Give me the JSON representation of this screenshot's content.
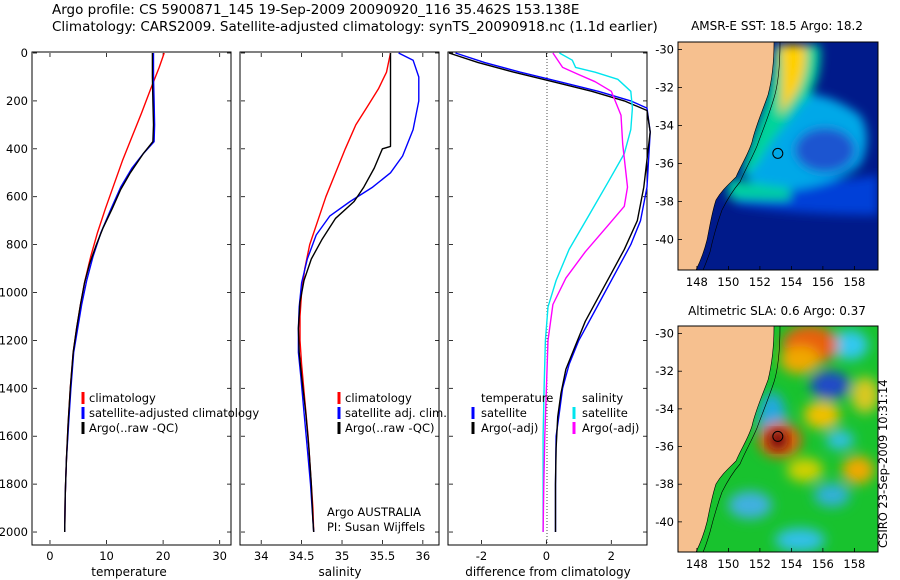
{
  "header": {
    "line1": "Argo profile: CS 5900871_145 19-Sep-2009 20090920_116 35.462S 153.138E",
    "line2": "Climatology: CARS2009. Satellite-adjusted climatology: synTS_20090918.nc (1.1d earlier)"
  },
  "credit": "CSIRO 23-Sep-2009 10:31:14",
  "colors": {
    "red": "#ff0000",
    "blue": "#0000ff",
    "black": "#000000",
    "cyan": "#00e5ee",
    "magenta": "#ff00ff",
    "land": "#f6c08f",
    "deep": "#001a8a"
  },
  "chart_data": [
    {
      "type": "line",
      "xlabel": "temperature",
      "ylabel": "",
      "xlim": [
        -3,
        32
      ],
      "ylim": [
        2050,
        0
      ],
      "xticks": [
        0,
        10,
        20,
        30
      ],
      "yticks": [
        0,
        200,
        400,
        600,
        800,
        1000,
        1200,
        1400,
        1600,
        1800,
        2000
      ],
      "legend": [
        "climatology",
        "satellite-adjusted climatology",
        "Argo(..raw -QC)"
      ],
      "series": [
        {
          "name": "climatology",
          "color": "red",
          "points": [
            [
              20.2,
              0
            ],
            [
              19.3,
              60
            ],
            [
              17.8,
              150
            ],
            [
              16.2,
              250
            ],
            [
              14.5,
              350
            ],
            [
              12.8,
              450
            ],
            [
              11.3,
              550
            ],
            [
              9.8,
              650
            ],
            [
              8.4,
              750
            ],
            [
              7.2,
              850
            ],
            [
              6.2,
              950
            ],
            [
              5.4,
              1050
            ],
            [
              4.7,
              1150
            ],
            [
              4.1,
              1250
            ],
            [
              3.6,
              1400
            ],
            [
              3.2,
              1550
            ],
            [
              2.9,
              1700
            ],
            [
              2.7,
              1850
            ],
            [
              2.6,
              2000
            ]
          ]
        },
        {
          "name": "satellite-adjusted climatology",
          "color": "blue",
          "points": [
            [
              18.3,
              0
            ],
            [
              18.3,
              100
            ],
            [
              18.4,
              200
            ],
            [
              18.5,
              300
            ],
            [
              18.4,
              370
            ],
            [
              16.5,
              420
            ],
            [
              14.5,
              480
            ],
            [
              12.5,
              560
            ],
            [
              10.8,
              650
            ],
            [
              9.0,
              750
            ],
            [
              7.6,
              850
            ],
            [
              6.5,
              950
            ],
            [
              5.6,
              1050
            ],
            [
              4.9,
              1150
            ],
            [
              4.2,
              1250
            ],
            [
              3.7,
              1400
            ],
            [
              3.3,
              1550
            ],
            [
              2.9,
              1700
            ],
            [
              2.7,
              1850
            ],
            [
              2.6,
              2000
            ]
          ]
        },
        {
          "name": "Argo(..raw -QC)",
          "color": "black",
          "points": [
            [
              18.1,
              0
            ],
            [
              18.1,
              100
            ],
            [
              18.2,
              200
            ],
            [
              18.3,
              300
            ],
            [
              18.2,
              370
            ],
            [
              16.5,
              420
            ],
            [
              14.2,
              500
            ],
            [
              12.5,
              570
            ],
            [
              11.0,
              650
            ],
            [
              9.4,
              730
            ],
            [
              8.2,
              800
            ],
            [
              7.0,
              880
            ],
            [
              6.1,
              960
            ],
            [
              5.4,
              1050
            ],
            [
              4.7,
              1150
            ],
            [
              4.1,
              1250
            ],
            [
              3.6,
              1400
            ],
            [
              3.2,
              1550
            ],
            [
              2.9,
              1700
            ],
            [
              2.7,
              1850
            ],
            [
              2.6,
              2000
            ]
          ]
        }
      ]
    },
    {
      "type": "line",
      "xlabel": "salinity",
      "ylabel": "",
      "xlim": [
        33.75,
        36.2
      ],
      "ylim": [
        2050,
        0
      ],
      "xticks": [
        34,
        34.5,
        35,
        35.5,
        36
      ],
      "legend": [
        "climatology",
        "satellite adj. clim.",
        "Argo(..raw -QC)"
      ],
      "annotations": [
        "Argo AUSTRALIA",
        "PI: Susan Wijffels"
      ],
      "series": [
        {
          "name": "climatology",
          "color": "red",
          "points": [
            [
              35.6,
              0
            ],
            [
              35.55,
              80
            ],
            [
              35.45,
              150
            ],
            [
              35.32,
              220
            ],
            [
              35.17,
              300
            ],
            [
              35.04,
              400
            ],
            [
              34.92,
              500
            ],
            [
              34.8,
              600
            ],
            [
              34.7,
              700
            ],
            [
              34.6,
              800
            ],
            [
              34.54,
              900
            ],
            [
              34.5,
              1000
            ],
            [
              34.48,
              1100
            ],
            [
              34.48,
              1200
            ],
            [
              34.5,
              1300
            ],
            [
              34.54,
              1450
            ],
            [
              34.58,
              1600
            ],
            [
              34.61,
              1750
            ],
            [
              34.64,
              1900
            ],
            [
              34.65,
              2000
            ]
          ]
        },
        {
          "name": "satellite adj. clim.",
          "color": "blue",
          "points": [
            [
              35.7,
              0
            ],
            [
              35.88,
              30
            ],
            [
              35.95,
              100
            ],
            [
              35.95,
              200
            ],
            [
              35.88,
              320
            ],
            [
              35.75,
              430
            ],
            [
              35.6,
              500
            ],
            [
              35.38,
              560
            ],
            [
              35.1,
              620
            ],
            [
              34.85,
              680
            ],
            [
              34.68,
              760
            ],
            [
              34.57,
              860
            ],
            [
              34.5,
              960
            ],
            [
              34.47,
              1060
            ],
            [
              34.46,
              1150
            ],
            [
              34.46,
              1250
            ],
            [
              34.49,
              1350
            ],
            [
              34.53,
              1500
            ],
            [
              34.57,
              1650
            ],
            [
              34.61,
              1800
            ],
            [
              34.64,
              1950
            ],
            [
              34.65,
              2000
            ]
          ]
        },
        {
          "name": "Argo(..raw -QC)",
          "color": "black",
          "points": [
            [
              35.6,
              0
            ],
            [
              35.6,
              100
            ],
            [
              35.6,
              200
            ],
            [
              35.6,
              300
            ],
            [
              35.6,
              390
            ],
            [
              35.5,
              400
            ],
            [
              35.4,
              480
            ],
            [
              35.27,
              560
            ],
            [
              35.15,
              620
            ],
            [
              34.92,
              690
            ],
            [
              34.75,
              780
            ],
            [
              34.62,
              860
            ],
            [
              34.53,
              950
            ],
            [
              34.48,
              1040
            ],
            [
              34.46,
              1150
            ],
            [
              34.47,
              1250
            ],
            [
              34.5,
              1350
            ],
            [
              34.55,
              1500
            ],
            [
              34.59,
              1650
            ],
            [
              34.62,
              1800
            ],
            [
              34.64,
              1950
            ],
            [
              34.65,
              2000
            ]
          ]
        }
      ]
    },
    {
      "type": "line",
      "xlabel": "difference from climatology",
      "ylabel": "",
      "xlim": [
        -3,
        3.1
      ],
      "ylim": [
        2050,
        0
      ],
      "xticks": [
        -2,
        0,
        2
      ],
      "legend": [
        "temperature",
        "satellite",
        "Argo(-adj)",
        "salinity",
        "satellite",
        "Argo(-adj)"
      ],
      "series": [
        {
          "name": "temperature satellite",
          "color": "blue",
          "points": [
            [
              -2.8,
              0
            ],
            [
              -1.9,
              40
            ],
            [
              -0.8,
              80
            ],
            [
              0.4,
              120
            ],
            [
              1.6,
              160
            ],
            [
              2.6,
              200
            ],
            [
              3.1,
              230
            ],
            [
              3.2,
              330
            ],
            [
              3.1,
              560
            ],
            [
              2.9,
              700
            ],
            [
              2.6,
              800
            ],
            [
              2.2,
              900
            ],
            [
              1.8,
              1000
            ],
            [
              1.4,
              1100
            ],
            [
              1.0,
              1200
            ],
            [
              0.7,
              1300
            ],
            [
              0.5,
              1400
            ],
            [
              0.4,
              1500
            ],
            [
              0.3,
              1600
            ],
            [
              0.28,
              1800
            ],
            [
              0.28,
              2000
            ]
          ]
        },
        {
          "name": "temperature Argo(-adj)",
          "color": "black",
          "points": [
            [
              -3.0,
              0
            ],
            [
              -2.1,
              40
            ],
            [
              -1.0,
              80
            ],
            [
              0.2,
              120
            ],
            [
              1.4,
              160
            ],
            [
              2.4,
              200
            ],
            [
              3.1,
              240
            ],
            [
              3.2,
              330
            ],
            [
              3.0,
              560
            ],
            [
              2.8,
              700
            ],
            [
              2.4,
              820
            ],
            [
              2.0,
              920
            ],
            [
              1.6,
              1020
            ],
            [
              1.2,
              1120
            ],
            [
              0.9,
              1220
            ],
            [
              0.6,
              1320
            ],
            [
              0.45,
              1420
            ],
            [
              0.35,
              1520
            ],
            [
              0.3,
              1650
            ],
            [
              0.28,
              1800
            ],
            [
              0.28,
              2000
            ]
          ]
        },
        {
          "name": "salinity satellite",
          "color": "cyan",
          "points": [
            [
              0.4,
              0
            ],
            [
              0.8,
              30
            ],
            [
              0.9,
              60
            ],
            [
              1.5,
              80
            ],
            [
              2.2,
              110
            ],
            [
              2.6,
              160
            ],
            [
              2.65,
              230
            ],
            [
              2.6,
              320
            ],
            [
              2.4,
              420
            ],
            [
              1.9,
              540
            ],
            [
              1.3,
              680
            ],
            [
              0.7,
              820
            ],
            [
              0.3,
              950
            ],
            [
              0.05,
              1060
            ],
            [
              -0.03,
              1200
            ],
            [
              -0.07,
              1400
            ],
            [
              -0.1,
              1600
            ],
            [
              -0.1,
              1800
            ],
            [
              -0.1,
              2000
            ]
          ]
        },
        {
          "name": "salinity Argo(-adj)",
          "color": "magenta",
          "points": [
            [
              0.2,
              0
            ],
            [
              0.5,
              60
            ],
            [
              1.0,
              90
            ],
            [
              1.5,
              120
            ],
            [
              2.0,
              160
            ],
            [
              2.3,
              260
            ],
            [
              2.35,
              380
            ],
            [
              2.5,
              560
            ],
            [
              2.45,
              600
            ],
            [
              2.4,
              640
            ],
            [
              1.9,
              720
            ],
            [
              1.2,
              830
            ],
            [
              0.6,
              940
            ],
            [
              0.2,
              1050
            ],
            [
              0.05,
              1200
            ],
            [
              0.0,
              1400
            ],
            [
              -0.05,
              1600
            ],
            [
              -0.08,
              1800
            ],
            [
              -0.1,
              2000
            ]
          ]
        }
      ]
    },
    {
      "type": "heatmap",
      "title": "AMSR-E SST: 18.5 Argo: 18.2",
      "xlim": [
        146.8,
        159.5
      ],
      "ylim": [
        -41.6,
        -29.6
      ],
      "xticks": [
        148,
        150,
        152,
        154,
        156,
        158
      ],
      "yticks": [
        -30,
        -32,
        -34,
        -36,
        -38,
        -40
      ],
      "argo_point": [
        153.138,
        -35.462
      ]
    },
    {
      "type": "heatmap",
      "title": "Altimetric SLA: 0.6 Argo: 0.37",
      "xlim": [
        146.8,
        159.5
      ],
      "ylim": [
        -41.6,
        -29.6
      ],
      "xticks": [
        148,
        150,
        152,
        154,
        156,
        158
      ],
      "yticks": [
        -30,
        -32,
        -34,
        -36,
        -38,
        -40
      ],
      "argo_point": [
        153.138,
        -35.462
      ]
    }
  ]
}
